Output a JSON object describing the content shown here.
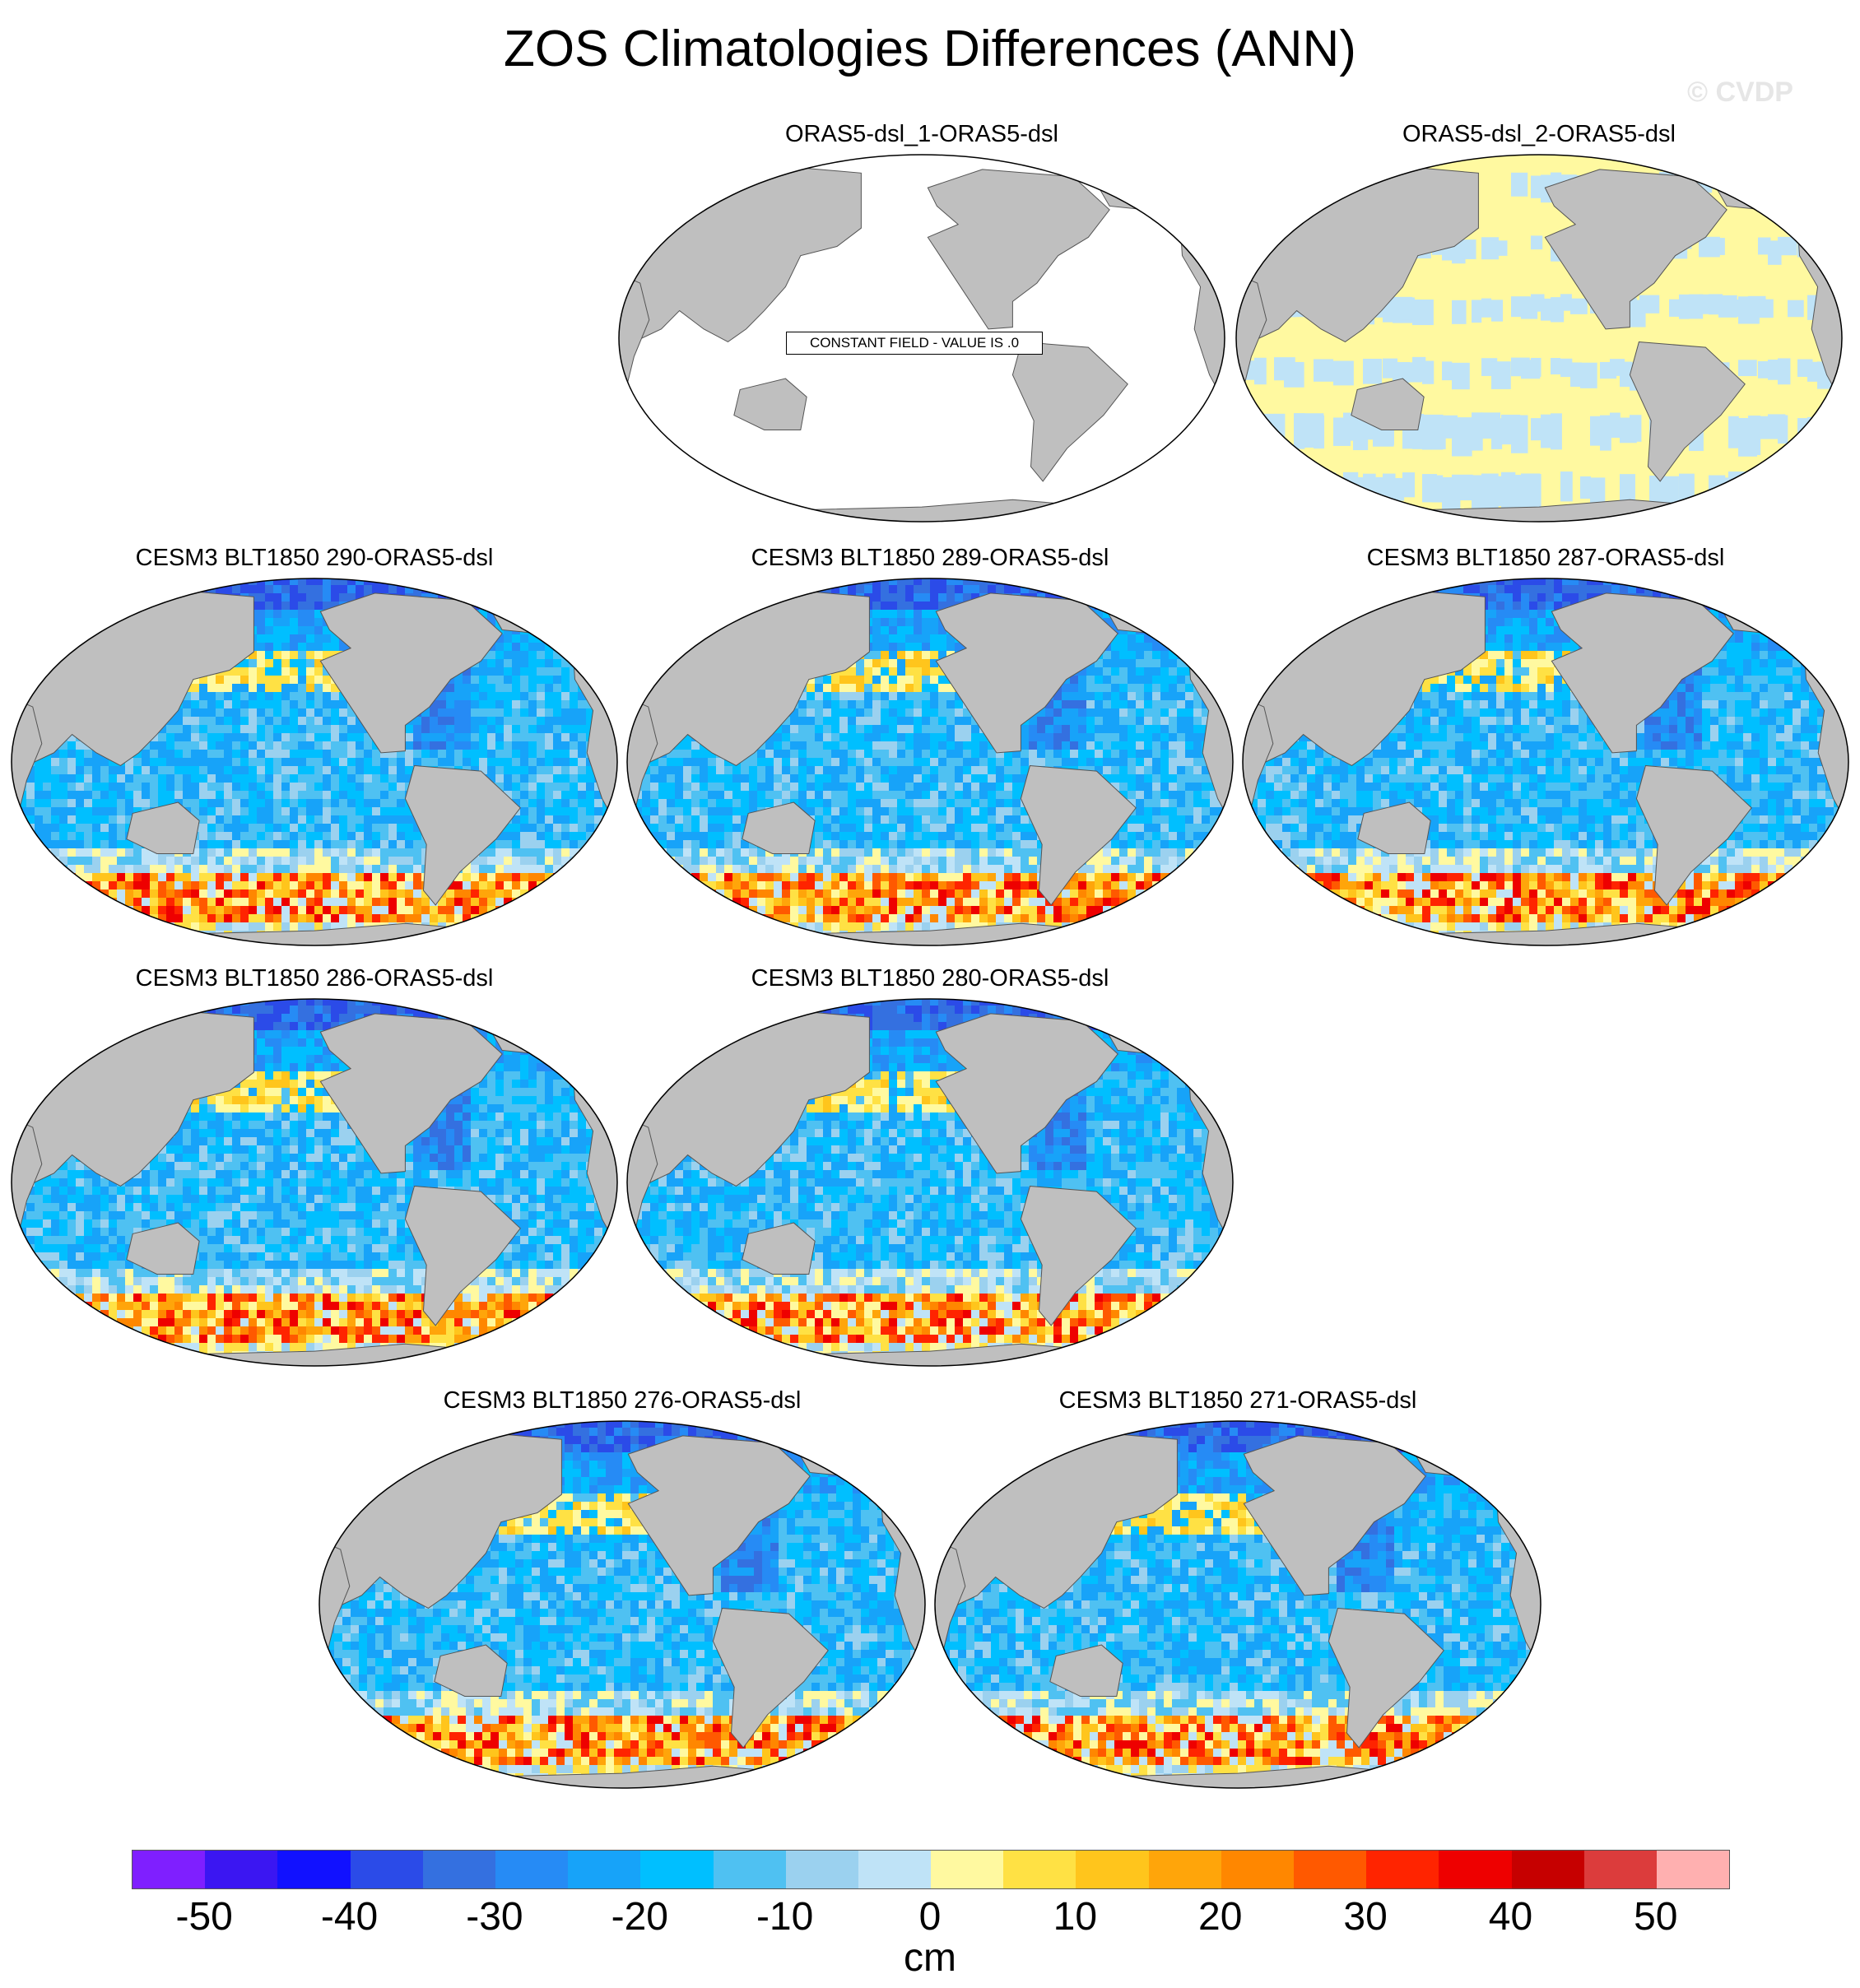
{
  "title": "ZOS Climatologies Differences (ANN)",
  "watermark": "© CVDP",
  "panels": [
    {
      "id": "p1",
      "title": "ORAS5-dsl_1-ORAS5-dsl",
      "style": "constant",
      "notice": "CONSTANT FIELD - VALUE IS .0"
    },
    {
      "id": "p2",
      "title": "ORAS5-dsl_2-ORAS5-dsl",
      "style": "tiny"
    },
    {
      "id": "p3",
      "title": "CESM3 BLT1850 290-ORAS5-dsl",
      "style": "model",
      "seed": 1
    },
    {
      "id": "p4",
      "title": "CESM3 BLT1850 289-ORAS5-dsl",
      "style": "model",
      "seed": 2
    },
    {
      "id": "p5",
      "title": "CESM3 BLT1850 287-ORAS5-dsl",
      "style": "model",
      "seed": 3
    },
    {
      "id": "p6",
      "title": "CESM3 BLT1850 286-ORAS5-dsl",
      "style": "model",
      "seed": 4
    },
    {
      "id": "p7",
      "title": "CESM3 BLT1850 280-ORAS5-dsl",
      "style": "model",
      "seed": 5
    },
    {
      "id": "p8",
      "title": "CESM3 BLT1850 276-ORAS5-dsl",
      "style": "model",
      "seed": 6
    },
    {
      "id": "p9",
      "title": "CESM3 BLT1850 271-ORAS5-dsl",
      "style": "model",
      "seed": 7
    }
  ],
  "colorbar": {
    "colors": [
      "#7f1fff",
      "#3b16f2",
      "#1111ff",
      "#2b4be8",
      "#3470e0",
      "#268bf5",
      "#17a3f9",
      "#00bfff",
      "#4fc1f2",
      "#9bd1ef",
      "#bfe3f7",
      "#fff9a0",
      "#ffe144",
      "#ffc51c",
      "#ffa50a",
      "#ff8700",
      "#ff5900",
      "#ff2400",
      "#ee0000",
      "#c60000",
      "#dc3c3c",
      "#ffb0b0"
    ],
    "tick_labels": [
      "-50",
      "-40",
      "-30",
      "-20",
      "-10",
      "0",
      "10",
      "20",
      "30",
      "40",
      "50"
    ],
    "units": "cm"
  }
}
